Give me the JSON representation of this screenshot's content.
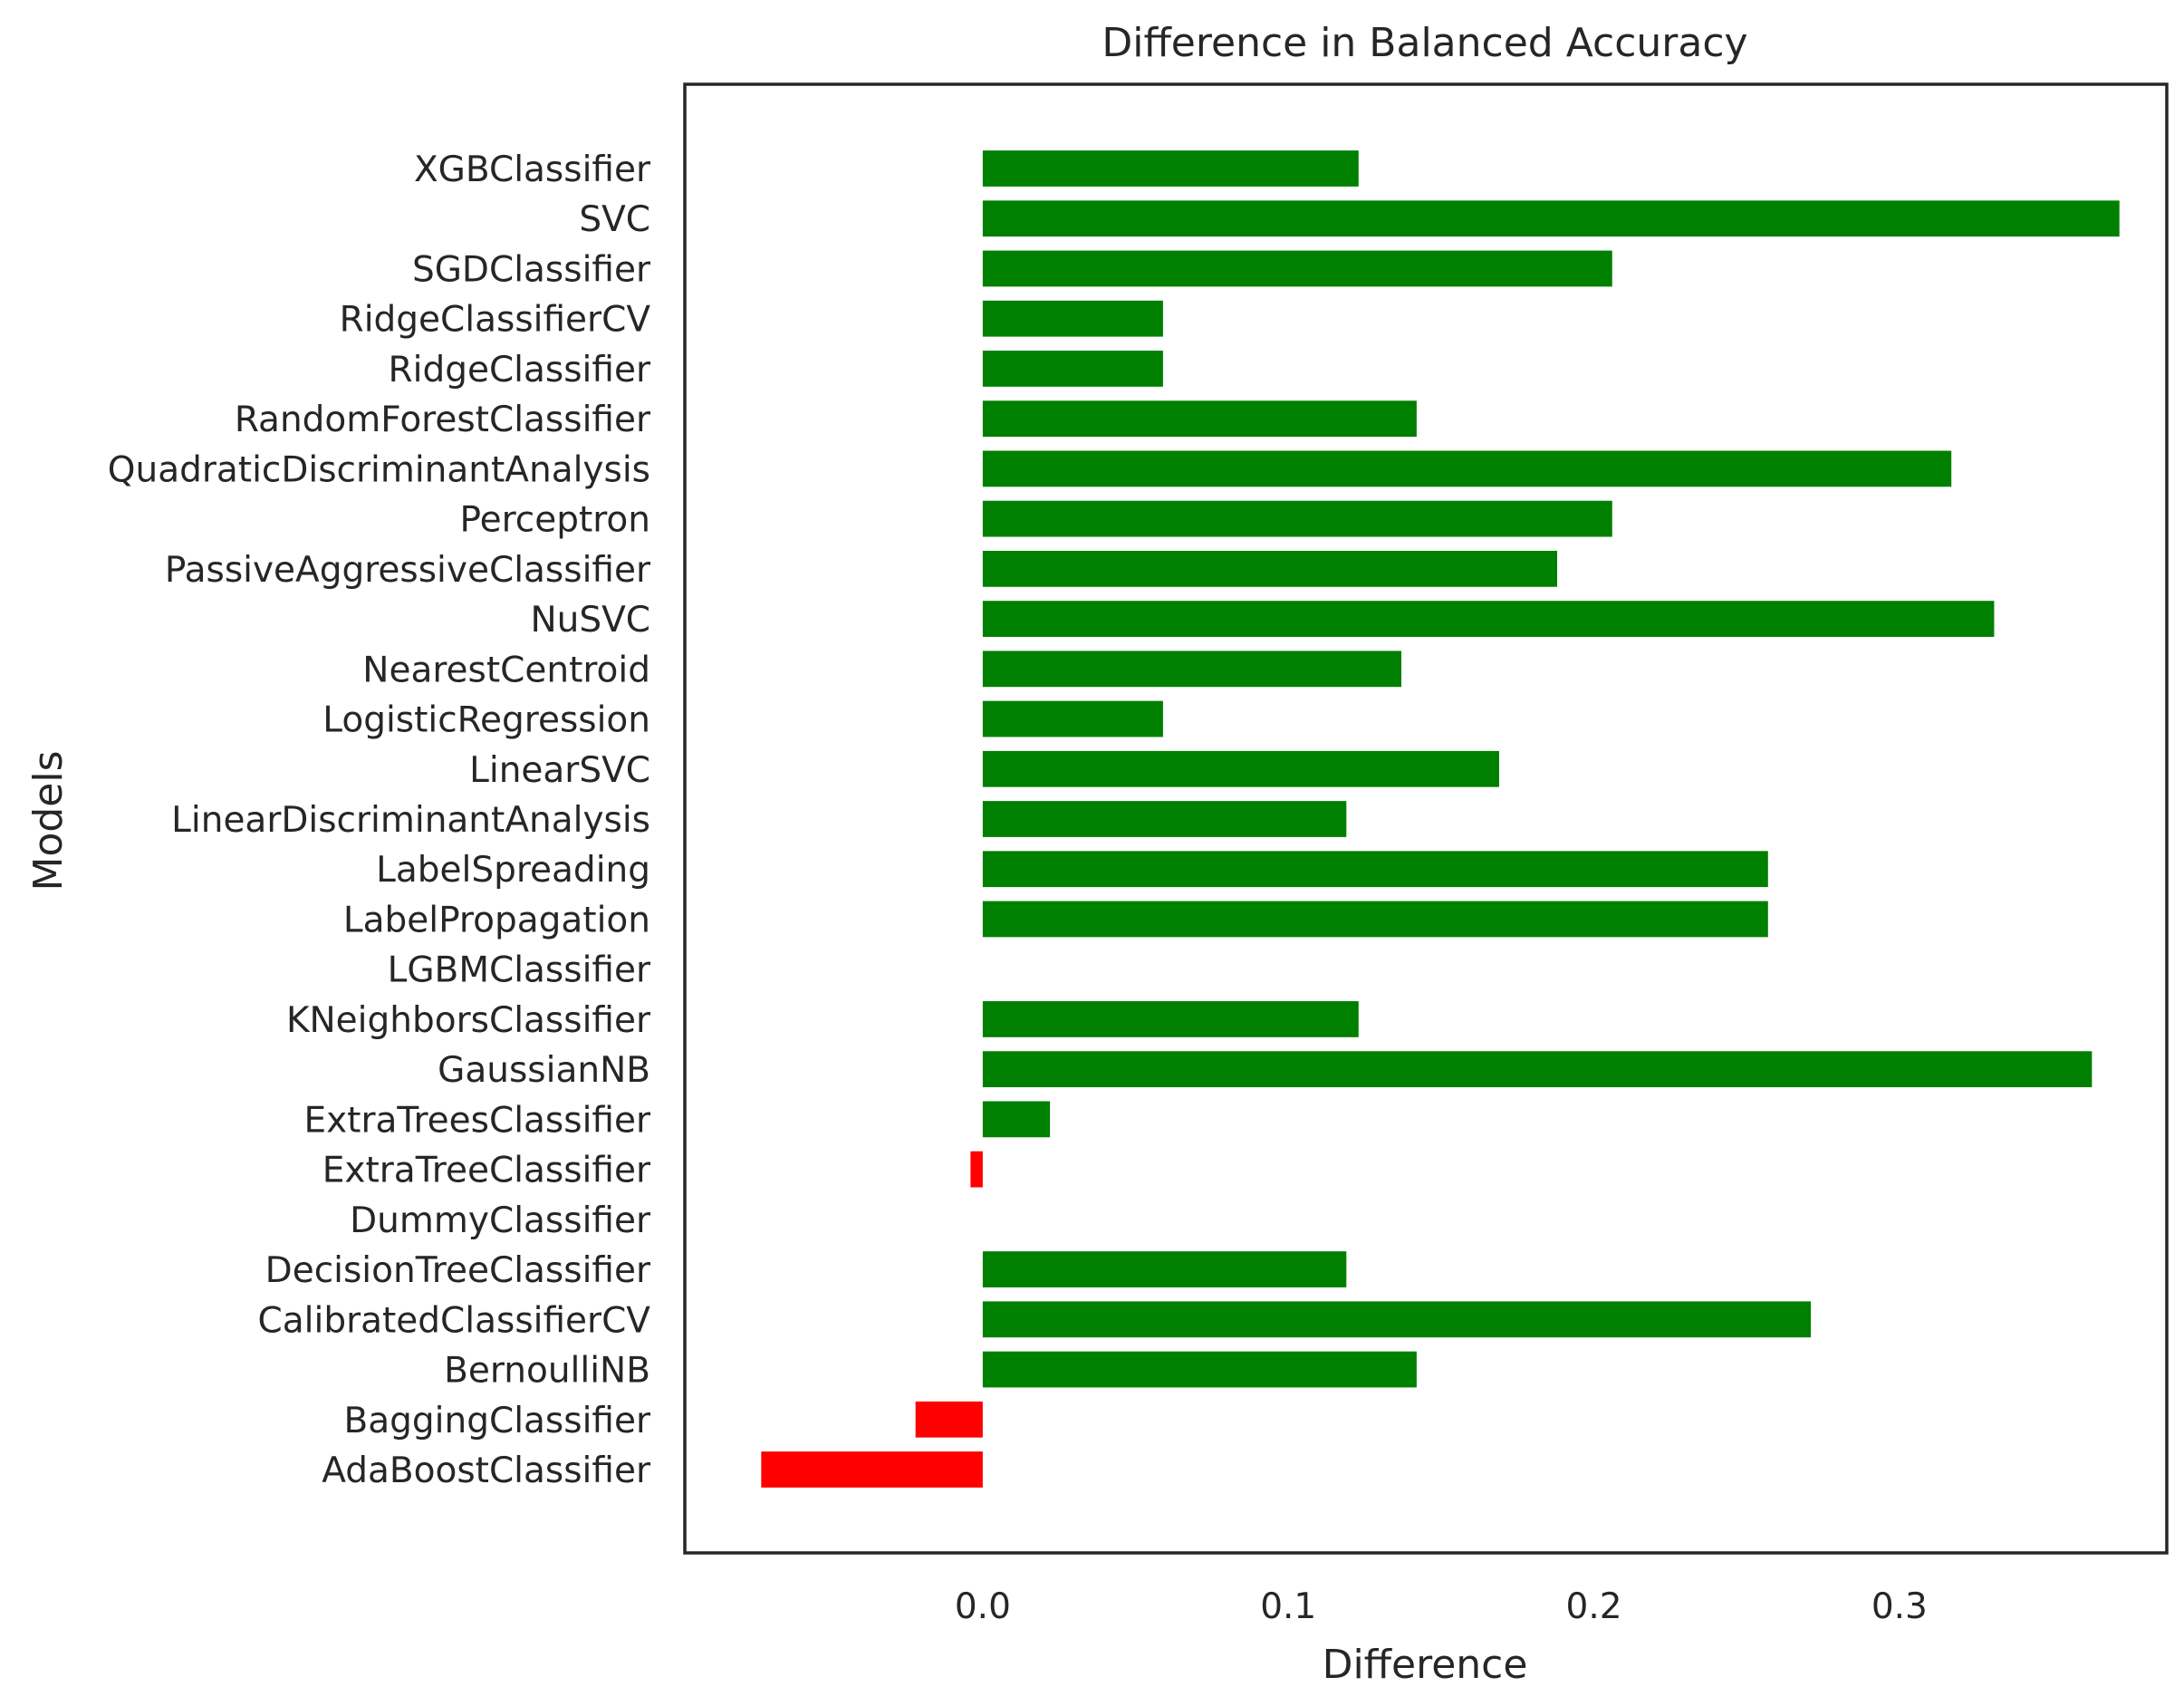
{
  "chart_data": {
    "type": "bar",
    "orientation": "horizontal",
    "title": "Difference in Balanced Accuracy",
    "xlabel": "Difference",
    "ylabel": "Models",
    "xlim": [
      -0.0975,
      0.3875
    ],
    "xticks": [
      "0.0",
      "0.1",
      "0.2",
      "0.3"
    ],
    "xtick_values": [
      0.0,
      0.1,
      0.2,
      0.3
    ],
    "grid": false,
    "colors": {
      "positive": "#008000",
      "negative": "#ff0000",
      "frame": "#262626"
    },
    "categories": [
      "AdaBoostClassifier",
      "BaggingClassifier",
      "BernoulliNB",
      "CalibratedClassifierCV",
      "DecisionTreeClassifier",
      "DummyClassifier",
      "ExtraTreeClassifier",
      "ExtraTreesClassifier",
      "GaussianNB",
      "KNeighborsClassifier",
      "LGBMClassifier",
      "LabelPropagation",
      "LabelSpreading",
      "LinearDiscriminantAnalysis",
      "LinearSVC",
      "LogisticRegression",
      "NearestCentroid",
      "NuSVC",
      "PassiveAggressiveClassifier",
      "Perceptron",
      "QuadraticDiscriminantAnalysis",
      "RandomForestClassifier",
      "RidgeClassifier",
      "RidgeClassifierCV",
      "SGDClassifier",
      "SVC",
      "XGBClassifier"
    ],
    "values": [
      -0.0725,
      -0.022,
      0.142,
      0.271,
      0.119,
      0.0,
      -0.004,
      0.022,
      0.363,
      0.123,
      0.0,
      0.257,
      0.257,
      0.119,
      0.169,
      0.059,
      0.137,
      0.331,
      0.188,
      0.206,
      0.317,
      0.142,
      0.059,
      0.059,
      0.206,
      0.372,
      0.123
    ]
  }
}
